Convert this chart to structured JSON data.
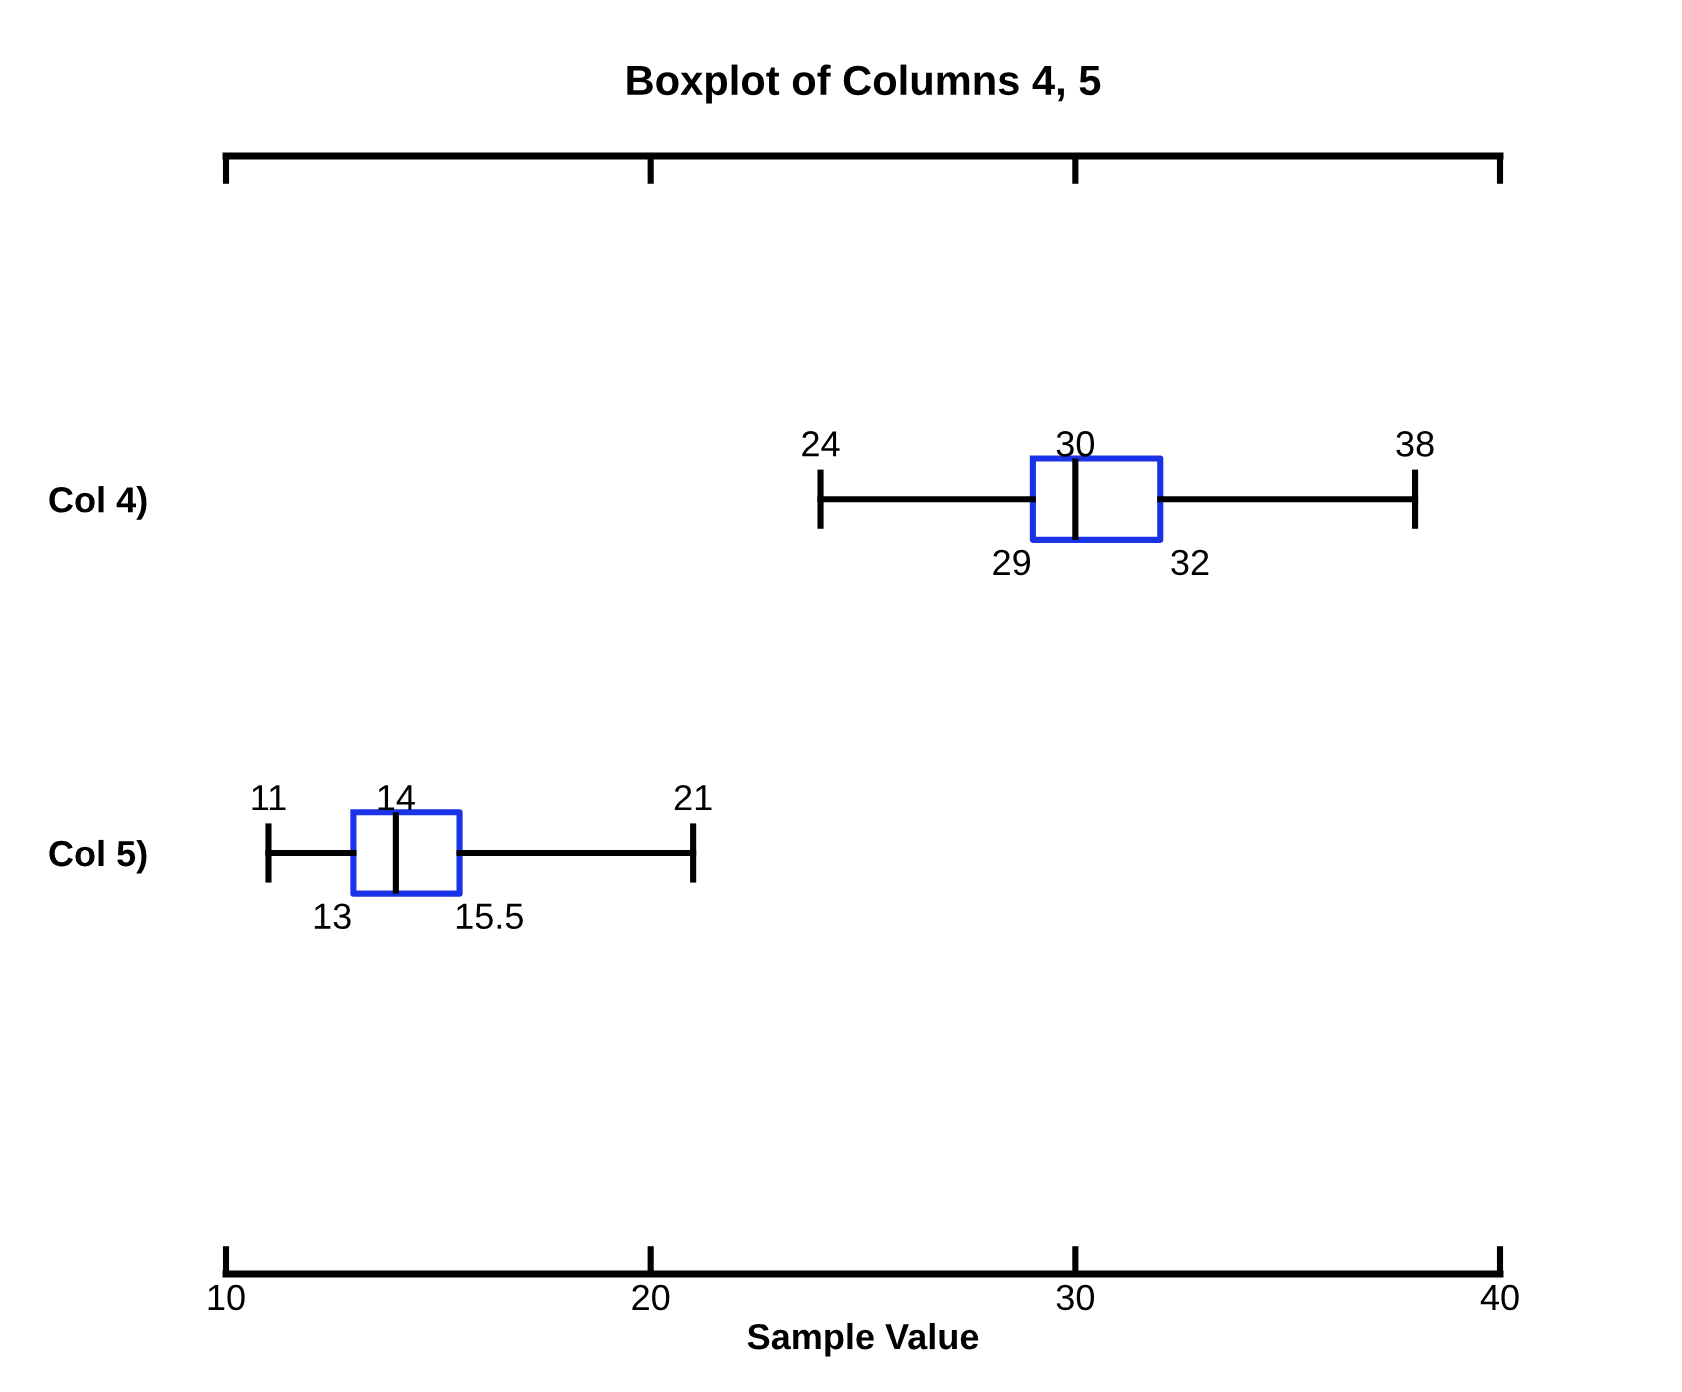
{
  "chart_data": {
    "type": "box",
    "title": "Boxplot of Columns 4, 5",
    "xlabel": "Sample Value",
    "orientation": "horizontal",
    "categories": [
      "Col 4)",
      "Col 5)"
    ],
    "boxes": [
      {
        "low": 24,
        "q1": 29,
        "median": 30,
        "q3": 32,
        "high": 38
      },
      {
        "low": 11,
        "q1": 13,
        "median": 14,
        "q3": 15.5,
        "high": 21
      }
    ],
    "color": "#1a33e6",
    "xlim": [
      10,
      40
    ],
    "xticks": [
      10,
      20,
      30,
      40
    ],
    "annotations": [
      {
        "text": "24",
        "x": 24,
        "y": "Col 4)"
      },
      {
        "text": "30",
        "x": 30,
        "y": "Col 4)"
      },
      {
        "text": "38",
        "x": 38,
        "y": "Col 4)"
      },
      {
        "text": "29",
        "x": 29,
        "y": "Col 4)"
      },
      {
        "text": "32",
        "x": 32,
        "y": "Col 4)"
      },
      {
        "text": "11",
        "x": 11,
        "y": "Col 5)"
      },
      {
        "text": "14",
        "x": 14,
        "y": "Col 5)"
      },
      {
        "text": "21",
        "x": 21,
        "y": "Col 5)"
      },
      {
        "text": "13",
        "x": 13,
        "y": "Col 5)"
      },
      {
        "text": "15.5",
        "x": 15.5,
        "y": "Col 5)"
      }
    ],
    "grid": false
  }
}
